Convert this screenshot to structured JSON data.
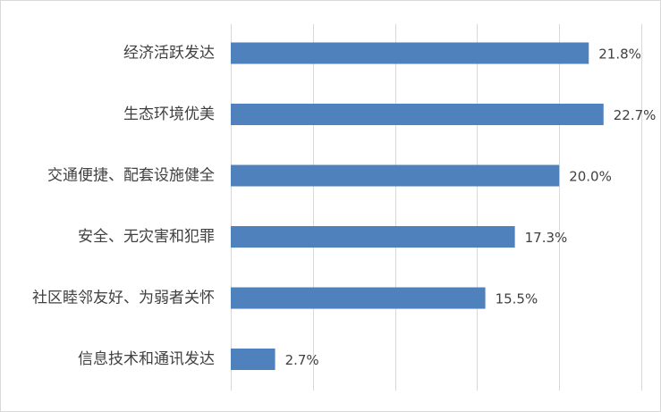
{
  "chart_data": {
    "type": "bar",
    "orientation": "horizontal",
    "categories": [
      "经济活跃发达",
      "生态环境优美",
      "交通便捷、配套设施健全",
      "安全、无灾害和犯罪",
      "社区睦邻友好、为弱者关怀",
      "信息技术和通讯发达"
    ],
    "values": [
      21.8,
      22.7,
      20.0,
      17.3,
      15.5,
      2.7
    ],
    "value_labels": [
      "21.8%",
      "22.7%",
      "20.0%",
      "17.3%",
      "15.5%",
      "2.7%"
    ],
    "bar_color": "#4f81bd",
    "xlim": [
      0,
      25
    ],
    "grid": true,
    "legend": "none",
    "title": "",
    "xlabel": "",
    "ylabel": ""
  }
}
